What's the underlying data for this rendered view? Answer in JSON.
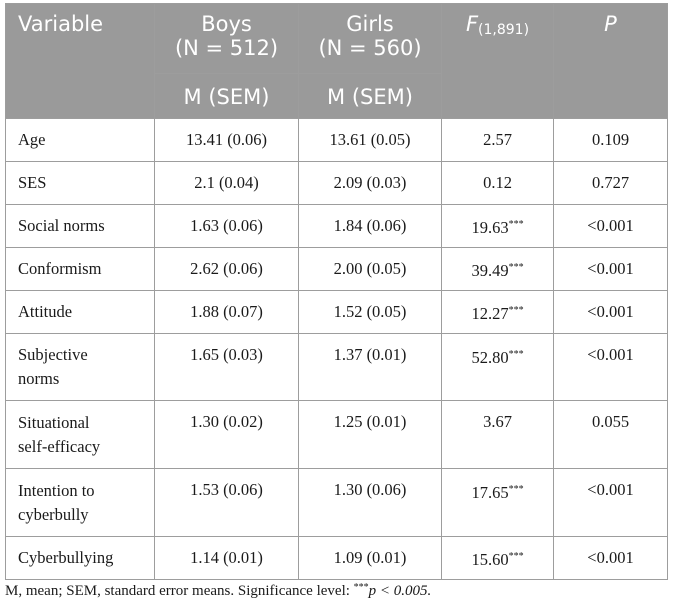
{
  "headers": {
    "variable": "Variable",
    "boys": "Boys",
    "boys_n": "(N = 512)",
    "girls": "Girls",
    "girls_n": "(N = 560)",
    "f_label": "F",
    "f_sub": "(1,891)",
    "p_label": "P",
    "boys_sub": "M (SEM)",
    "girls_sub": "M (SEM)"
  },
  "rows": [
    {
      "variable": "Age",
      "boys": "13.41 (0.06)",
      "girls": "13.61 (0.05)",
      "f": "2.57",
      "f_sig": "",
      "p": "0.109"
    },
    {
      "variable": "SES",
      "boys": "2.1 (0.04)",
      "girls": "2.09 (0.03)",
      "f": "0.12",
      "f_sig": "",
      "p": "0.727"
    },
    {
      "variable": "Social norms",
      "boys": "1.63 (0.06)",
      "girls": "1.84 (0.06)",
      "f": "19.63",
      "f_sig": "***",
      "p": "<0.001"
    },
    {
      "variable": "Conformism",
      "boys": "2.62 (0.06)",
      "girls": "2.00 (0.05)",
      "f": "39.49",
      "f_sig": "***",
      "p": "<0.001"
    },
    {
      "variable": "Attitude",
      "boys": "1.88 (0.07)",
      "girls": "1.52 (0.05)",
      "f": "12.27",
      "f_sig": "***",
      "p": "<0.001"
    },
    {
      "variable_line1": "Subjective",
      "variable_line2": "norms",
      "boys": "1.65 (0.03)",
      "girls": "1.37 (0.01)",
      "f": "52.80",
      "f_sig": "***",
      "p": "<0.001"
    },
    {
      "variable_line1": "Situational",
      "variable_line2": "self-efficacy",
      "boys": "1.30 (0.02)",
      "girls": "1.25 (0.01)",
      "f": "3.67",
      "f_sig": "",
      "p": "0.055"
    },
    {
      "variable_line1": "Intention to",
      "variable_line2": "cyberbully",
      "boys": "1.53 (0.06)",
      "girls": "1.30 (0.06)",
      "f": "17.65",
      "f_sig": "***",
      "p": "<0.001"
    },
    {
      "variable": "Cyberbullying",
      "boys": "1.14 (0.01)",
      "girls": "1.09 (0.01)",
      "f": "15.60",
      "f_sig": "***",
      "p": "<0.001"
    }
  ],
  "footnote": {
    "text": "M, mean; SEM, standard error means. Significance level: ",
    "sig_mark": "***",
    "condition": "p < 0.005."
  },
  "colors": {
    "header_bg": "#9a9a9a",
    "border": "#9d9d9d"
  }
}
